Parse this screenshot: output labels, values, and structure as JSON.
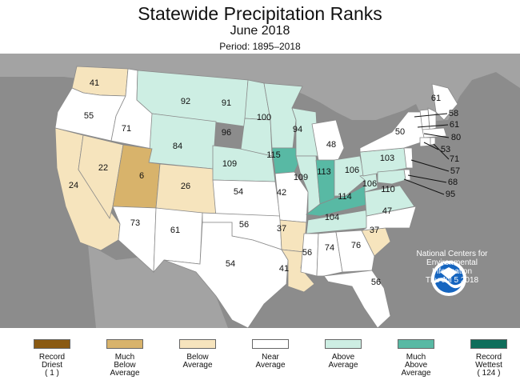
{
  "title": "Statewide Precipitation Ranks",
  "subtitle": "June 2018",
  "period": "Period: 1895–2018",
  "colors": {
    "record_driest": "#8a5a12",
    "much_below": "#d8b36b",
    "below": "#f6e4bd",
    "near": "#ffffff",
    "above": "#cdeee3",
    "much_above": "#58b9a4",
    "record_wettest": "#0f6e5b",
    "land_background": "#8c8c8c"
  },
  "states": [
    {
      "abbr": "WA",
      "rank": "41",
      "category": "below"
    },
    {
      "abbr": "OR",
      "rank": "55",
      "category": "near"
    },
    {
      "abbr": "CA",
      "rank": "24",
      "category": "below"
    },
    {
      "abbr": "NV",
      "rank": "22",
      "category": "below"
    },
    {
      "abbr": "ID",
      "rank": "71",
      "category": "near"
    },
    {
      "abbr": "MT",
      "rank": "92",
      "category": "above"
    },
    {
      "abbr": "WY",
      "rank": "84",
      "category": "above"
    },
    {
      "abbr": "UT",
      "rank": "6",
      "category": "much_below"
    },
    {
      "abbr": "CO",
      "rank": "26",
      "category": "below"
    },
    {
      "abbr": "AZ",
      "rank": "73",
      "category": "near"
    },
    {
      "abbr": "NM",
      "rank": "61",
      "category": "near"
    },
    {
      "abbr": "ND",
      "rank": "91",
      "category": "above"
    },
    {
      "abbr": "SD",
      "rank": "96",
      "category": "above"
    },
    {
      "abbr": "NE",
      "rank": "109",
      "category": "above"
    },
    {
      "abbr": "KS",
      "rank": "54",
      "category": "near"
    },
    {
      "abbr": "OK",
      "rank": "56",
      "category": "near"
    },
    {
      "abbr": "TX",
      "rank": "54",
      "category": "near"
    },
    {
      "abbr": "MN",
      "rank": "100",
      "category": "above"
    },
    {
      "abbr": "IA",
      "rank": "115",
      "category": "much_above"
    },
    {
      "abbr": "MO",
      "rank": "42",
      "category": "near"
    },
    {
      "abbr": "AR",
      "rank": "37",
      "category": "below"
    },
    {
      "abbr": "LA",
      "rank": "41",
      "category": "below"
    },
    {
      "abbr": "WI",
      "rank": "94",
      "category": "above"
    },
    {
      "abbr": "IL",
      "rank": "109",
      "category": "above"
    },
    {
      "abbr": "MI",
      "rank": "48",
      "category": "near"
    },
    {
      "abbr": "IN",
      "rank": "113",
      "category": "much_above"
    },
    {
      "abbr": "OH",
      "rank": "106",
      "category": "above"
    },
    {
      "abbr": "KY",
      "rank": "114",
      "category": "much_above"
    },
    {
      "abbr": "TN",
      "rank": "104",
      "category": "above"
    },
    {
      "abbr": "MS",
      "rank": "56",
      "category": "near"
    },
    {
      "abbr": "AL",
      "rank": "74",
      "category": "near"
    },
    {
      "abbr": "GA",
      "rank": "76",
      "category": "near"
    },
    {
      "abbr": "FL",
      "rank": "56",
      "category": "near"
    },
    {
      "abbr": "SC",
      "rank": "37",
      "category": "below"
    },
    {
      "abbr": "NC",
      "rank": "47",
      "category": "near"
    },
    {
      "abbr": "VA",
      "rank": "110",
      "category": "above"
    },
    {
      "abbr": "WV",
      "rank": "106",
      "category": "above"
    },
    {
      "abbr": "PA",
      "rank": "103",
      "category": "above"
    },
    {
      "abbr": "NY",
      "rank": "50",
      "category": "near"
    },
    {
      "abbr": "ME",
      "rank": "61",
      "category": "near"
    },
    {
      "abbr": "NH",
      "rank": "58",
      "category": "near"
    },
    {
      "abbr": "VT",
      "rank": "61",
      "category": "near"
    },
    {
      "abbr": "MA",
      "rank": "80",
      "category": "near"
    },
    {
      "abbr": "CT",
      "rank": "53",
      "category": "near"
    },
    {
      "abbr": "RI",
      "rank": "71",
      "category": "near"
    },
    {
      "abbr": "NJ",
      "rank": "57",
      "category": "near"
    },
    {
      "abbr": "DE",
      "rank": "68",
      "category": "near"
    },
    {
      "abbr": "MD",
      "rank": "95",
      "category": "above"
    }
  ],
  "ncei": {
    "logo_text": "NOAA",
    "line1": "National Centers for",
    "line2": "Environmental",
    "line3": "Information",
    "date": "Thu Jul  5 2018"
  },
  "legend": [
    {
      "key": "record_driest",
      "label": "Record\nDriest\n( 1 )"
    },
    {
      "key": "much_below",
      "label": "Much\nBelow\nAverage"
    },
    {
      "key": "below",
      "label": "Below\nAverage"
    },
    {
      "key": "near",
      "label": "Near\nAverage"
    },
    {
      "key": "above",
      "label": "Above\nAverage"
    },
    {
      "key": "much_above",
      "label": "Much\nAbove\nAverage"
    },
    {
      "key": "record_wettest",
      "label": "Record\nWettest\n( 124 )"
    }
  ]
}
